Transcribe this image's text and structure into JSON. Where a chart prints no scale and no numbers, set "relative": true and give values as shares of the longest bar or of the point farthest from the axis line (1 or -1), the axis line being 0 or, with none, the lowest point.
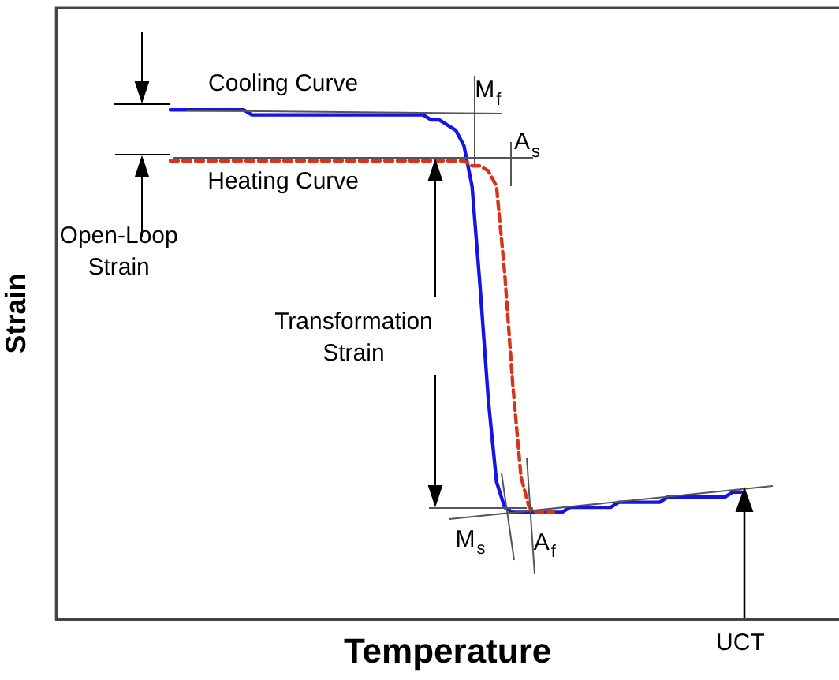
{
  "chart_data": {
    "type": "line",
    "relative": true,
    "xlabel": "Temperature",
    "ylabel": "Strain",
    "legend": false,
    "marker": "none",
    "grid": false,
    "categories": [
      null,
      null,
      null,
      null,
      null,
      null,
      null,
      null,
      null,
      null,
      null,
      null,
      null,
      null,
      null,
      null,
      null,
      null,
      null,
      null,
      null,
      null,
      null,
      null,
      null,
      null,
      null,
      null,
      null,
      null,
      null,
      null,
      null,
      null,
      null,
      null,
      null,
      null,
      null,
      null,
      null,
      null,
      null,
      null,
      null,
      null,
      null,
      null,
      null,
      null,
      null,
      null,
      null,
      null,
      null,
      null,
      null,
      null,
      null,
      null,
      null,
      null,
      null,
      null,
      null,
      null,
      null,
      null,
      null,
      null,
      null,
      null,
      null,
      null,
      null,
      null,
      null,
      null,
      null,
      null,
      null,
      null,
      null,
      null,
      null,
      null,
      null,
      null,
      null,
      null,
      null,
      null,
      null,
      null,
      null,
      null,
      null
    ],
    "series": [
      {
        "name": "Cooling Curve",
        "color": "#1414e6",
        "line_style": "solid",
        "values": [
          null,
          null,
          null,
          null,
          null,
          null,
          null,
          null,
          null,
          null,
          null,
          null,
          null,
          null,
          1,
          1,
          1,
          1,
          1,
          1,
          1,
          1,
          1,
          1,
          0.99,
          0.99,
          0.99,
          0.99,
          0.99,
          0.99,
          0.99,
          0.99,
          0.99,
          0.99,
          0.99,
          0.99,
          0.99,
          0.99,
          0.99,
          0.99,
          0.99,
          0.99,
          0.99,
          0.99,
          0.99,
          0.99,
          0.98,
          0.98,
          0.97,
          0.96,
          0.93,
          0.85,
          0.65,
          0.43,
          0.27,
          0.22,
          0.21,
          0.21,
          0.21,
          0.21,
          0.21,
          0.21,
          0.21,
          0.22,
          0.22,
          0.22,
          0.22,
          0.22,
          0.22,
          0.23,
          0.23,
          0.23,
          0.23,
          0.23,
          0.23,
          0.24,
          0.24,
          0.24,
          0.24,
          0.24,
          0.24,
          0.24,
          0.24,
          0.25,
          0.25,
          null,
          null,
          null,
          null,
          null,
          null,
          null,
          null,
          null,
          null,
          null,
          null
        ]
      },
      {
        "name": "Heating Curve",
        "color": "#d8341c",
        "line_style": "dashed",
        "values": [
          null,
          null,
          null,
          null,
          null,
          null,
          null,
          null,
          null,
          null,
          null,
          null,
          null,
          null,
          0.9,
          0.9,
          0.9,
          0.9,
          0.9,
          0.9,
          0.9,
          0.9,
          0.9,
          0.9,
          0.9,
          0.9,
          0.9,
          0.9,
          0.9,
          0.9,
          0.9,
          0.9,
          0.9,
          0.9,
          0.9,
          0.9,
          0.9,
          0.9,
          0.9,
          0.9,
          0.9,
          0.9,
          0.9,
          0.9,
          0.9,
          0.9,
          0.9,
          0.9,
          0.9,
          0.9,
          0.9,
          0.89,
          0.89,
          0.88,
          0.85,
          0.68,
          0.46,
          0.28,
          0.22,
          0.21,
          0.21,
          0.21,
          null,
          null,
          null,
          null,
          null,
          null,
          null,
          null,
          null,
          null,
          null,
          null,
          null,
          null,
          null,
          null,
          null,
          null,
          null,
          null,
          null,
          null,
          null,
          null,
          null,
          null,
          null,
          null,
          null,
          null,
          null,
          null,
          null,
          null,
          null
        ]
      }
    ],
    "annotations": [
      "Open-Loop\nStrain",
      "Transformation\nStrain",
      "M$_{f}$",
      "A$_{s}$",
      "M$_{s}$",
      "A$_{f}$",
      "UCT"
    ]
  }
}
